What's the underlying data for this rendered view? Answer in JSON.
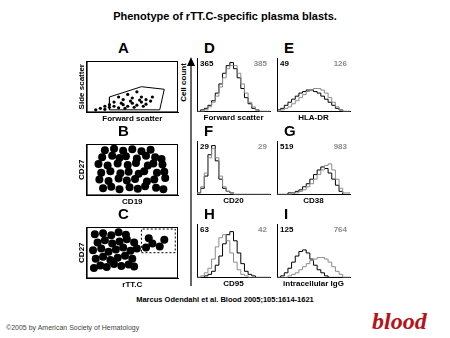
{
  "title": "Phenotype of rTT.C-specific plasma blasts.",
  "y_label": "Cell count",
  "citation": "Marcus Odendahl et al. Blood 2005;105:1614-1621",
  "copyright": "©2005 by American Society of Hematology",
  "logo": "blood",
  "chart_data": [
    {
      "panel": "A",
      "type": "scatter",
      "x_label": "Forward scatter",
      "y_label": "Side scatter",
      "xlim": [
        0,
        100
      ],
      "ylim": [
        0,
        100
      ],
      "tick_labels": false,
      "color": "#000000",
      "marker": "circle",
      "x": [
        10,
        15,
        20,
        25,
        30,
        35,
        40,
        45,
        50,
        55,
        60,
        65,
        70,
        30,
        40,
        50,
        60,
        45,
        55,
        35,
        25,
        65,
        72,
        20,
        38,
        48,
        58,
        42,
        52,
        62
      ],
      "values": [
        5,
        8,
        6,
        10,
        12,
        9,
        15,
        12,
        18,
        14,
        20,
        16,
        22,
        20,
        25,
        28,
        30,
        35,
        40,
        30,
        15,
        25,
        30,
        12,
        18,
        22,
        24,
        8,
        10,
        12
      ],
      "gate": {
        "x": [
          25,
          80,
          85,
          60,
          25,
          25
        ],
        "y": [
          5,
          5,
          45,
          50,
          30,
          5
        ],
        "line_style": "solid"
      }
    },
    {
      "panel": "B",
      "type": "scatter",
      "x_label": "CD19",
      "y_label": "CD27",
      "xlim": [
        0,
        100
      ],
      "ylim": [
        0,
        100
      ],
      "tick_labels": false,
      "color": "#000000",
      "marker": "circle",
      "x": [
        18,
        27,
        36,
        47,
        56,
        64,
        76,
        84,
        14,
        24,
        35,
        44,
        53,
        66,
        74,
        86,
        16,
        26,
        37,
        46,
        57,
        63,
        77,
        85,
        13,
        23,
        34,
        45,
        54,
        67,
        73,
        83,
        17,
        28,
        36,
        43,
        55,
        65,
        75,
        82,
        20,
        30,
        40,
        50,
        60,
        70
      ],
      "values": [
        14,
        17,
        12,
        16,
        13,
        18,
        15,
        12,
        31,
        28,
        33,
        29,
        32,
        27,
        31,
        34,
        44,
        47,
        43,
        46,
        42,
        47,
        44,
        46,
        61,
        58,
        62,
        59,
        63,
        58,
        62,
        60,
        74,
        77,
        73,
        76,
        72,
        77,
        74,
        71,
        88,
        91,
        87,
        90,
        86,
        89
      ]
    },
    {
      "panel": "C",
      "type": "scatter",
      "x_label": "rTT.C",
      "y_label": "CD27",
      "xlim": [
        0,
        100
      ],
      "ylim": [
        0,
        100
      ],
      "tick_labels": false,
      "color": "#000000",
      "marker": "circle",
      "x": [
        8,
        15,
        22,
        30,
        38,
        46,
        52,
        10,
        18,
        26,
        34,
        42,
        50,
        7,
        16,
        24,
        32,
        40,
        48,
        55,
        12,
        20,
        28,
        36,
        44,
        52,
        9,
        18,
        27,
        35,
        43,
        65,
        72,
        80,
        68,
        85
      ],
      "values": [
        20,
        25,
        22,
        28,
        24,
        27,
        23,
        38,
        42,
        36,
        40,
        44,
        38,
        55,
        58,
        52,
        56,
        60,
        54,
        58,
        70,
        74,
        68,
        72,
        76,
        70,
        86,
        88,
        84,
        90,
        85,
        60,
        68,
        62,
        78,
        75
      ],
      "gate": {
        "x": [
          60,
          97,
          97,
          60,
          60
        ],
        "y": [
          50,
          50,
          96,
          96,
          50
        ],
        "line_style": "dashed"
      }
    },
    {
      "panel": "D",
      "type": "histogram",
      "x_label": "Forward scatter",
      "xlim": [
        0,
        100
      ],
      "ylim": [
        0,
        35
      ],
      "tick_labels": false,
      "bins": [
        0,
        5,
        10,
        15,
        20,
        25,
        30,
        35,
        40,
        45,
        50,
        55,
        60,
        65,
        70,
        75,
        80,
        85,
        90,
        95,
        100
      ],
      "series": [
        {
          "color": "#000000",
          "values": [
            0,
            0,
            1,
            2,
            4,
            7,
            12,
            18,
            25,
            30,
            32,
            28,
            22,
            15,
            9,
            5,
            2,
            1,
            0,
            0
          ]
        },
        {
          "color": "#8c8c8c",
          "values": [
            0,
            0,
            0,
            1,
            3,
            6,
            10,
            16,
            22,
            28,
            30,
            30,
            25,
            18,
            12,
            6,
            3,
            1,
            0,
            0
          ]
        }
      ],
      "annotations": [
        {
          "value": 365,
          "color": "#000000"
        },
        {
          "value": 385,
          "color": "#8c8c8c"
        }
      ]
    },
    {
      "panel": "E",
      "type": "histogram",
      "x_label": "HLA-DR",
      "xlim": [
        0,
        100
      ],
      "ylim": [
        0,
        35
      ],
      "tick_labels": false,
      "bins": [
        0,
        5,
        10,
        15,
        20,
        25,
        30,
        35,
        40,
        45,
        50,
        55,
        60,
        65,
        70,
        75,
        80,
        85,
        90,
        95,
        100
      ],
      "series": [
        {
          "color": "#000000",
          "values": [
            0,
            1,
            2,
            4,
            6,
            8,
            10,
            12,
            13,
            14,
            14,
            13,
            12,
            10,
            8,
            6,
            4,
            2,
            1,
            0
          ]
        },
        {
          "color": "#8c8c8c",
          "values": [
            0,
            0,
            1,
            2,
            3,
            5,
            7,
            9,
            11,
            13,
            14,
            15,
            15,
            14,
            12,
            9,
            6,
            3,
            1,
            0
          ]
        }
      ],
      "annotations": [
        {
          "value": 49,
          "color": "#000000"
        },
        {
          "value": 126,
          "color": "#8c8c8c"
        }
      ]
    },
    {
      "panel": "F",
      "type": "histogram",
      "x_label": "CD20",
      "xlim": [
        0,
        100
      ],
      "ylim": [
        0,
        35
      ],
      "tick_labels": false,
      "bins": [
        0,
        5,
        10,
        15,
        20,
        25,
        30,
        35,
        40,
        45,
        50,
        55,
        60,
        65,
        70,
        75,
        80,
        85,
        90,
        95,
        100
      ],
      "series": [
        {
          "color": "#000000",
          "values": [
            0,
            1,
            4,
            12,
            26,
            32,
            22,
            10,
            4,
            2,
            1,
            0,
            0,
            0,
            0,
            0,
            0,
            0,
            0,
            0
          ]
        },
        {
          "color": "#8c8c8c",
          "values": [
            0,
            1,
            5,
            14,
            24,
            30,
            24,
            12,
            5,
            2,
            1,
            0,
            0,
            0,
            0,
            0,
            0,
            0,
            0,
            0
          ]
        }
      ],
      "annotations": [
        {
          "value": 29,
          "color": "#000000"
        },
        {
          "value": 29,
          "color": "#8c8c8c"
        }
      ]
    },
    {
      "panel": "G",
      "type": "histogram",
      "x_label": "CD38",
      "xlim": [
        0,
        100
      ],
      "ylim": [
        0,
        35
      ],
      "tick_labels": false,
      "bins": [
        0,
        5,
        10,
        15,
        20,
        25,
        30,
        35,
        40,
        45,
        50,
        55,
        60,
        65,
        70,
        75,
        80,
        85,
        90,
        95,
        100
      ],
      "series": [
        {
          "color": "#000000",
          "values": [
            0,
            0,
            0,
            0,
            1,
            1,
            2,
            3,
            5,
            7,
            10,
            13,
            16,
            18,
            17,
            14,
            10,
            6,
            2,
            0
          ]
        },
        {
          "color": "#8c8c8c",
          "values": [
            0,
            0,
            0,
            0,
            0,
            1,
            1,
            2,
            3,
            5,
            7,
            10,
            13,
            16,
            19,
            20,
            16,
            10,
            4,
            1
          ]
        }
      ],
      "annotations": [
        {
          "value": 519,
          "color": "#000000"
        },
        {
          "value": 983,
          "color": "#8c8c8c"
        }
      ]
    },
    {
      "panel": "H",
      "type": "histogram",
      "x_label": "CD95",
      "xlim": [
        0,
        100
      ],
      "ylim": [
        0,
        35
      ],
      "tick_labels": false,
      "bins": [
        0,
        5,
        10,
        15,
        20,
        25,
        30,
        35,
        40,
        45,
        50,
        55,
        60,
        65,
        70,
        75,
        80,
        85,
        90,
        95,
        100
      ],
      "series": [
        {
          "color": "#000000",
          "values": [
            0,
            0,
            0,
            1,
            2,
            4,
            8,
            14,
            22,
            28,
            30,
            24,
            16,
            9,
            4,
            2,
            1,
            0,
            0,
            0
          ]
        },
        {
          "color": "#8c8c8c",
          "values": [
            0,
            0,
            1,
            3,
            6,
            12,
            20,
            26,
            28,
            24,
            16,
            10,
            5,
            2,
            1,
            0,
            0,
            0,
            0,
            0
          ]
        }
      ],
      "annotations": [
        {
          "value": 63,
          "color": "#000000"
        },
        {
          "value": 42,
          "color": "#8c8c8c"
        }
      ]
    },
    {
      "panel": "I",
      "type": "histogram",
      "x_label": "intracellular IgG",
      "xlim": [
        0,
        100
      ],
      "ylim": [
        0,
        35
      ],
      "tick_labels": false,
      "bins": [
        0,
        5,
        10,
        15,
        20,
        25,
        30,
        35,
        40,
        45,
        50,
        55,
        60,
        65,
        70,
        75,
        80,
        85,
        90,
        95,
        100
      ],
      "series": [
        {
          "color": "#000000",
          "values": [
            0,
            0,
            1,
            3,
            6,
            10,
            14,
            17,
            18,
            16,
            12,
            8,
            5,
            3,
            1,
            0,
            0,
            0,
            0,
            0
          ]
        },
        {
          "color": "#8c8c8c",
          "values": [
            0,
            0,
            0,
            0,
            1,
            2,
            3,
            5,
            7,
            9,
            11,
            12,
            13,
            13,
            12,
            10,
            7,
            4,
            2,
            0
          ]
        }
      ],
      "annotations": [
        {
          "value": 125,
          "color": "#000000"
        },
        {
          "value": 764,
          "color": "#8c8c8c"
        }
      ]
    }
  ]
}
